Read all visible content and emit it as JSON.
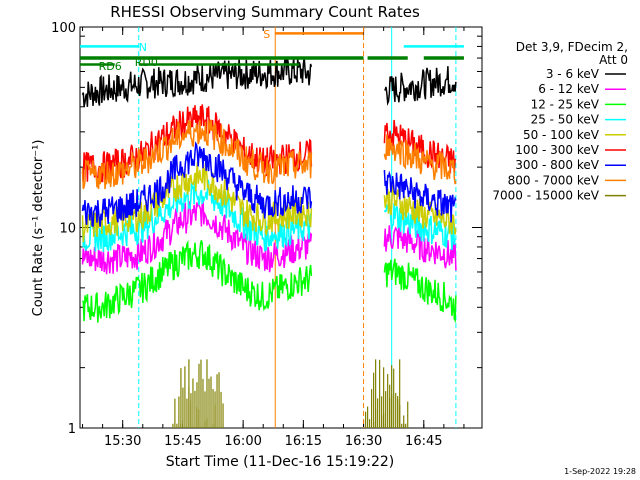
{
  "chart_data": {
    "type": "line",
    "title": "RHESSI Observing Summary Count Rates",
    "xlabel": "Start Time (11-Dec-16 15:19:22)",
    "ylabel": "Count Rate (s⁻¹ detector⁻¹)",
    "y_scale": "log",
    "ylim": [
      1,
      100
    ],
    "xlim": [
      "15:19:22",
      "16:59:30"
    ],
    "x_ticks": [
      "15:30",
      "15:45",
      "16:00",
      "16:15",
      "16:30",
      "16:45"
    ],
    "y_ticks": [
      "1",
      "10",
      "100"
    ],
    "legend_header": [
      "Det 3,9, FDecim 2,",
      "Att 0"
    ],
    "legend_position": "right",
    "series": [
      {
        "name": "3 - 6 keV",
        "color": "#000000",
        "x": [
          "15:20",
          "15:25",
          "15:30",
          "15:35",
          "15:40",
          "15:45",
          "15:50",
          "15:55",
          "16:00",
          "16:05",
          "16:10",
          "16:15",
          "16:17",
          "16:35",
          "16:40",
          "16:45",
          "16:50",
          "16:53"
        ],
        "values": [
          46,
          48,
          50,
          52,
          53,
          54,
          56,
          57,
          58,
          59,
          60,
          60,
          58,
          48,
          50,
          52,
          54,
          55
        ]
      },
      {
        "name": "6 - 12 keV",
        "color": "#ff00ff",
        "x": [
          "15:20",
          "15:25",
          "15:30",
          "15:35",
          "15:40",
          "15:45",
          "15:50",
          "15:55",
          "16:00",
          "16:05",
          "16:10",
          "16:15",
          "16:17",
          "16:35",
          "16:38",
          "16:42",
          "16:45",
          "16:50",
          "16:53"
        ],
        "values": [
          7,
          7,
          7,
          7.5,
          9,
          11,
          12,
          10,
          8,
          7,
          7.5,
          8,
          8,
          9,
          9,
          8.5,
          8,
          7.5,
          7
        ]
      },
      {
        "name": "12 - 25 keV",
        "color": "#00ff00",
        "x": [
          "15:20",
          "15:25",
          "15:30",
          "15:35",
          "15:40",
          "15:45",
          "15:50",
          "15:55",
          "16:00",
          "16:05",
          "16:10",
          "16:15",
          "16:17",
          "16:35",
          "16:38",
          "16:42",
          "16:45",
          "16:50",
          "16:53"
        ],
        "values": [
          4,
          4,
          4.5,
          5,
          6,
          7,
          7.5,
          6,
          5,
          4.5,
          5,
          5.5,
          5.5,
          6,
          6,
          5.5,
          5,
          4.5,
          4
        ]
      },
      {
        "name": "25 - 50 keV",
        "color": "#00ffff",
        "x": [
          "15:20",
          "15:25",
          "15:30",
          "15:35",
          "15:40",
          "15:45",
          "15:50",
          "15:55",
          "16:00",
          "16:05",
          "16:10",
          "16:15",
          "16:17",
          "16:35",
          "16:38",
          "16:42",
          "16:45",
          "16:50",
          "16:53"
        ],
        "values": [
          9,
          9,
          9.5,
          10,
          12,
          14,
          15,
          13,
          10.5,
          9,
          9.5,
          10,
          10,
          12,
          11.5,
          10.5,
          10,
          9.5,
          9
        ]
      },
      {
        "name": "50 - 100 keV",
        "color": "#cccc00",
        "x": [
          "15:20",
          "15:25",
          "15:30",
          "15:35",
          "15:40",
          "15:45",
          "15:50",
          "15:55",
          "16:00",
          "16:05",
          "16:10",
          "16:15",
          "16:17",
          "16:35",
          "16:38",
          "16:42",
          "16:45",
          "16:50",
          "16:53"
        ],
        "values": [
          10,
          10.5,
          11,
          11.5,
          14,
          17,
          18,
          15,
          12,
          11,
          11.5,
          12,
          12,
          14,
          13.5,
          12.5,
          11.5,
          11,
          10.5
        ]
      },
      {
        "name": "100 - 300 keV",
        "color": "#ff0000",
        "x": [
          "15:20",
          "15:25",
          "15:30",
          "15:35",
          "15:40",
          "15:45",
          "15:50",
          "15:55",
          "16:00",
          "16:05",
          "16:10",
          "16:15",
          "16:17",
          "16:35",
          "16:38",
          "16:42",
          "16:45",
          "16:50",
          "16:53"
        ],
        "values": [
          20,
          20,
          21,
          23,
          28,
          33,
          35,
          30,
          24,
          21,
          22,
          23,
          23,
          30,
          29,
          26,
          24,
          22,
          21
        ]
      },
      {
        "name": "300 - 800 keV",
        "color": "#0000ff",
        "x": [
          "15:20",
          "15:25",
          "15:30",
          "15:35",
          "15:40",
          "15:45",
          "15:50",
          "15:55",
          "16:00",
          "16:05",
          "16:10",
          "16:15",
          "16:17",
          "16:35",
          "16:38",
          "16:42",
          "16:45",
          "16:50",
          "16:53"
        ],
        "values": [
          12,
          12,
          12.5,
          13.5,
          16,
          21,
          23,
          19,
          15,
          13,
          13.5,
          14,
          14,
          17,
          16.5,
          15,
          14,
          13,
          12
        ]
      },
      {
        "name": "800 - 7000 keV",
        "color": "#ff8000",
        "x": [
          "15:20",
          "15:25",
          "15:30",
          "15:35",
          "15:40",
          "15:45",
          "15:50",
          "15:55",
          "16:00",
          "16:05",
          "16:10",
          "16:15",
          "16:17",
          "16:35",
          "16:38",
          "16:42",
          "16:45",
          "16:50",
          "16:53"
        ],
        "values": [
          18,
          18.5,
          19,
          21,
          25,
          29,
          31,
          27,
          22,
          19.5,
          20,
          20.5,
          20.5,
          26,
          25,
          23,
          21,
          20,
          19
        ]
      },
      {
        "name": "7000 - 15000 keV",
        "color": "#808000",
        "x": [
          "15:44",
          "15:46",
          "15:48",
          "15:50",
          "15:52",
          "15:54",
          "16:32",
          "16:34",
          "16:36",
          "16:38",
          "16:40"
        ],
        "values": [
          1.2,
          1.8,
          1.5,
          1.9,
          1.4,
          1.7,
          1.3,
          1.9,
          1.6,
          1.8,
          1.2
        ]
      }
    ],
    "annotations": {
      "N": {
        "label": "N",
        "color": "#00ffff",
        "segments": [
          [
            "15:19:22",
            "15:34"
          ],
          [
            "16:40",
            "16:55"
          ]
        ]
      },
      "S": {
        "label": "S",
        "color": "#ff8000",
        "segments": [
          [
            "16:08",
            "16:30"
          ]
        ]
      },
      "RD0": {
        "label": "RD0",
        "color": "#008000",
        "segments": [
          [
            "15:19:22",
            "16:30"
          ],
          [
            "16:31",
            "16:41"
          ],
          [
            "16:45",
            "16:55"
          ]
        ]
      },
      "RD6": {
        "label": "RD6",
        "color": "#008000",
        "segments": [
          [
            "15:19:22",
            "15:28"
          ],
          [
            "15:34",
            "16:14"
          ]
        ]
      },
      "vlines": [
        {
          "x": "15:34",
          "color": "#00ffff",
          "style": "dashed"
        },
        {
          "x": "16:08",
          "color": "#ff8000",
          "style": "solid"
        },
        {
          "x": "16:30",
          "color": "#ff8000",
          "style": "dashed"
        },
        {
          "x": "16:37",
          "color": "#00ffff",
          "style": "solid"
        },
        {
          "x": "16:53",
          "color": "#00ffff",
          "style": "dashed"
        }
      ]
    }
  },
  "footer_timestamp": "1-Sep-2022 19:28"
}
